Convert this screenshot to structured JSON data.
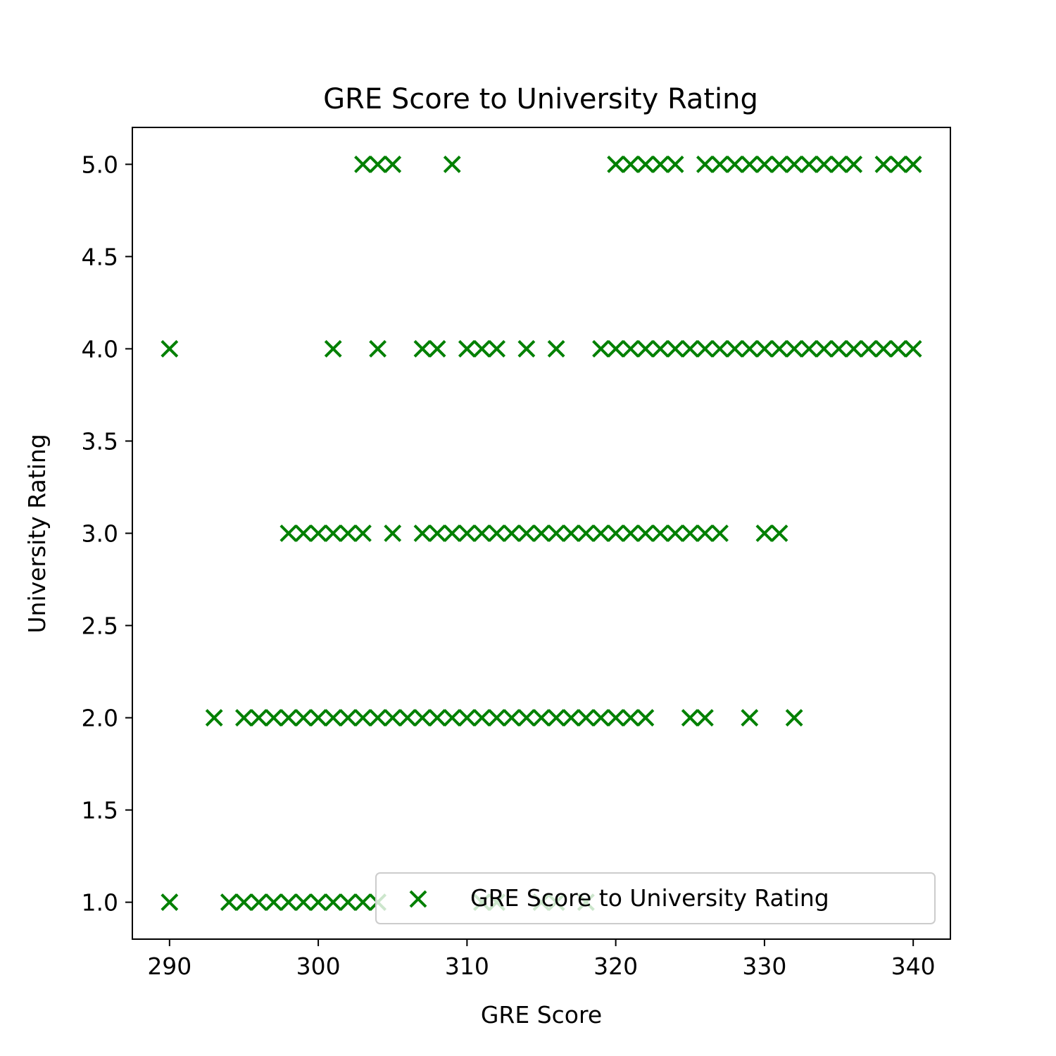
{
  "chart_data": {
    "type": "scatter",
    "title": "GRE Score to University Rating",
    "xlabel": "GRE Score",
    "ylabel": "University Rating",
    "xlim": [
      287.5,
      342.5
    ],
    "ylim": [
      0.8,
      5.2
    ],
    "xticks": [
      290,
      300,
      310,
      320,
      330,
      340
    ],
    "yticks": [
      1.0,
      1.5,
      2.0,
      2.5,
      3.0,
      3.5,
      4.0,
      4.5,
      5.0
    ],
    "xtick_labels": [
      "290",
      "300",
      "310",
      "320",
      "330",
      "340"
    ],
    "ytick_labels": [
      "1.0",
      "1.5",
      "2.0",
      "2.5",
      "3.0",
      "3.5",
      "4.0",
      "4.5",
      "5.0"
    ],
    "grid": false,
    "legend": {
      "position": "lower-right",
      "entries": [
        "GRE Score to University Rating"
      ]
    },
    "series": [
      {
        "name": "GRE Score to University Rating",
        "marker": "x",
        "color": "#008000",
        "points": [
          [
            290,
            1
          ],
          [
            294,
            1
          ],
          [
            295,
            1
          ],
          [
            296,
            1
          ],
          [
            297,
            1
          ],
          [
            298,
            1
          ],
          [
            299,
            1
          ],
          [
            300,
            1
          ],
          [
            301,
            1
          ],
          [
            302,
            1
          ],
          [
            303,
            1
          ],
          [
            304,
            1
          ],
          [
            311,
            1
          ],
          [
            312,
            1
          ],
          [
            315,
            1
          ],
          [
            316,
            1
          ],
          [
            318,
            1
          ],
          [
            293,
            2
          ],
          [
            295,
            2
          ],
          [
            296,
            2
          ],
          [
            297,
            2
          ],
          [
            298,
            2
          ],
          [
            299,
            2
          ],
          [
            300,
            2
          ],
          [
            301,
            2
          ],
          [
            302,
            2
          ],
          [
            303,
            2
          ],
          [
            304,
            2
          ],
          [
            305,
            2
          ],
          [
            306,
            2
          ],
          [
            307,
            2
          ],
          [
            308,
            2
          ],
          [
            309,
            2
          ],
          [
            310,
            2
          ],
          [
            311,
            2
          ],
          [
            312,
            2
          ],
          [
            313,
            2
          ],
          [
            314,
            2
          ],
          [
            315,
            2
          ],
          [
            316,
            2
          ],
          [
            317,
            2
          ],
          [
            318,
            2
          ],
          [
            319,
            2
          ],
          [
            320,
            2
          ],
          [
            321,
            2
          ],
          [
            322,
            2
          ],
          [
            325,
            2
          ],
          [
            326,
            2
          ],
          [
            329,
            2
          ],
          [
            332,
            2
          ],
          [
            298,
            3
          ],
          [
            299,
            3
          ],
          [
            300,
            3
          ],
          [
            301,
            3
          ],
          [
            302,
            3
          ],
          [
            303,
            3
          ],
          [
            305,
            3
          ],
          [
            307,
            3
          ],
          [
            308,
            3
          ],
          [
            309,
            3
          ],
          [
            310,
            3
          ],
          [
            311,
            3
          ],
          [
            312,
            3
          ],
          [
            313,
            3
          ],
          [
            314,
            3
          ],
          [
            315,
            3
          ],
          [
            316,
            3
          ],
          [
            317,
            3
          ],
          [
            318,
            3
          ],
          [
            319,
            3
          ],
          [
            320,
            3
          ],
          [
            321,
            3
          ],
          [
            322,
            3
          ],
          [
            323,
            3
          ],
          [
            324,
            3
          ],
          [
            325,
            3
          ],
          [
            326,
            3
          ],
          [
            327,
            3
          ],
          [
            330,
            3
          ],
          [
            331,
            3
          ],
          [
            290,
            4
          ],
          [
            301,
            4
          ],
          [
            304,
            4
          ],
          [
            307,
            4
          ],
          [
            308,
            4
          ],
          [
            310,
            4
          ],
          [
            311,
            4
          ],
          [
            312,
            4
          ],
          [
            314,
            4
          ],
          [
            316,
            4
          ],
          [
            319,
            4
          ],
          [
            320,
            4
          ],
          [
            321,
            4
          ],
          [
            322,
            4
          ],
          [
            323,
            4
          ],
          [
            324,
            4
          ],
          [
            325,
            4
          ],
          [
            326,
            4
          ],
          [
            327,
            4
          ],
          [
            328,
            4
          ],
          [
            329,
            4
          ],
          [
            330,
            4
          ],
          [
            331,
            4
          ],
          [
            332,
            4
          ],
          [
            333,
            4
          ],
          [
            334,
            4
          ],
          [
            335,
            4
          ],
          [
            336,
            4
          ],
          [
            337,
            4
          ],
          [
            338,
            4
          ],
          [
            339,
            4
          ],
          [
            340,
            4
          ],
          [
            303,
            5
          ],
          [
            304,
            5
          ],
          [
            305,
            5
          ],
          [
            309,
            5
          ],
          [
            320,
            5
          ],
          [
            321,
            5
          ],
          [
            322,
            5
          ],
          [
            323,
            5
          ],
          [
            324,
            5
          ],
          [
            326,
            5
          ],
          [
            327,
            5
          ],
          [
            328,
            5
          ],
          [
            329,
            5
          ],
          [
            330,
            5
          ],
          [
            331,
            5
          ],
          [
            332,
            5
          ],
          [
            333,
            5
          ],
          [
            334,
            5
          ],
          [
            335,
            5
          ],
          [
            336,
            5
          ],
          [
            338,
            5
          ],
          [
            339,
            5
          ],
          [
            340,
            5
          ]
        ]
      }
    ]
  }
}
